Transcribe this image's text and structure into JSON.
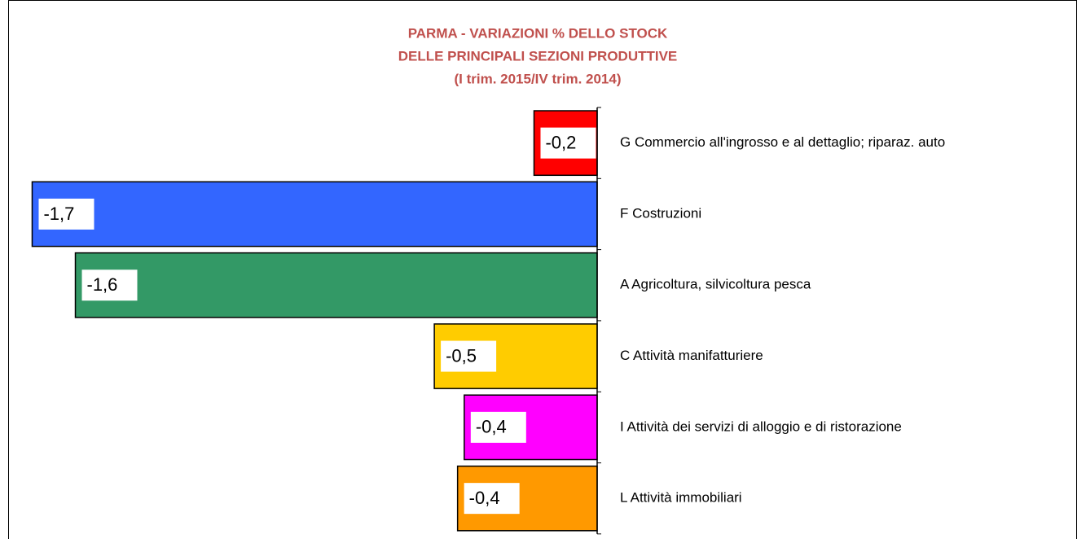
{
  "chart_data": {
    "type": "bar",
    "orientation": "horizontal",
    "title": [
      "PARMA - VARIAZIONI % DELLO STOCK",
      "DELLE PRINCIPALI SEZIONI PRODUTTIVE",
      "(I trim. 2015/IV trim. 2014)"
    ],
    "categories": [
      "G Commercio all'ingrosso e al dettaglio; riparaz. auto",
      "F Costruzioni",
      "A Agricoltura, silvicoltura pesca",
      "C Attività manifatturiere",
      "I Attività dei servizi di alloggio e di ristorazione",
      "L Attività immobiliari"
    ],
    "values": [
      -0.19,
      -1.7,
      -1.57,
      -0.49,
      -0.4,
      -0.42
    ],
    "value_labels": [
      "-0,2",
      "-1,7",
      "-1,6",
      "-0,5",
      "-0,4",
      "-0,4"
    ],
    "colors": [
      "#ff0000",
      "#3366ff",
      "#339966",
      "#ffcc00",
      "#ff00ff",
      "#ff9900"
    ],
    "xlim": [
      -1.76,
      0
    ]
  }
}
